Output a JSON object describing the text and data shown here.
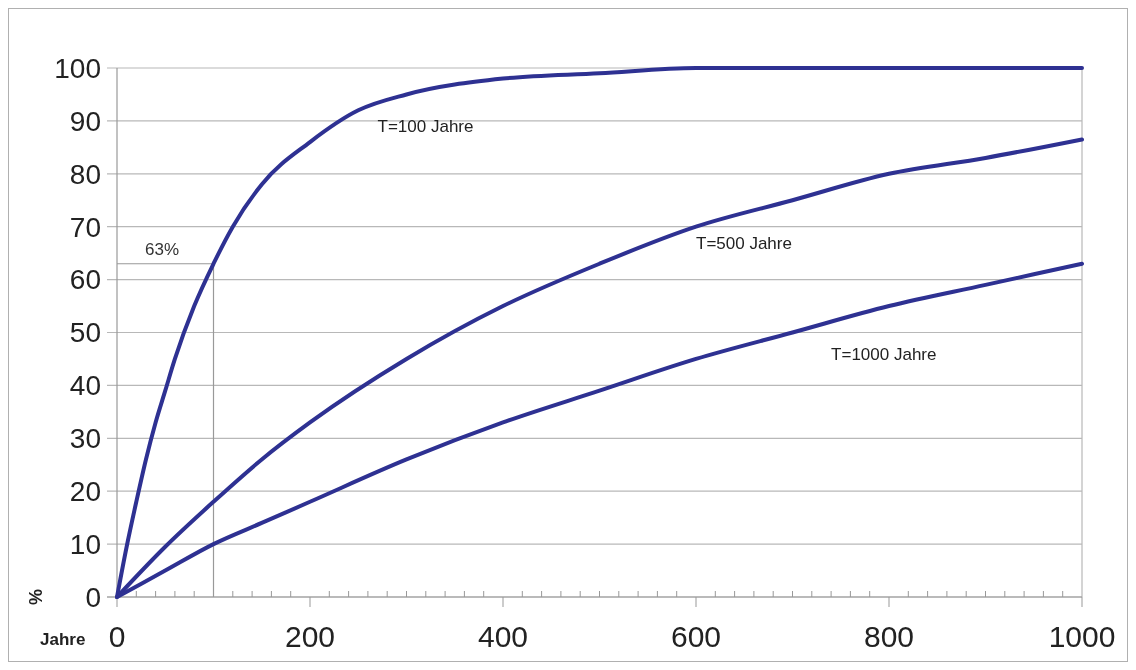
{
  "chart_data": {
    "type": "line",
    "xlabel": "Jahre",
    "ylabel": "%",
    "xlim": [
      0,
      1000
    ],
    "ylim": [
      0,
      100
    ],
    "xticks": [
      0,
      {
        "value": 20,
        "label": null
      },
      {
        "value": 40,
        "label": null
      },
      {
        "value": 60,
        "label": null
      },
      {
        "value": 80,
        "label": null
      },
      {
        "value": 100,
        "label": null
      },
      {
        "value": 120,
        "label": null
      },
      {
        "value": 140,
        "label": null
      },
      {
        "value": 160,
        "label": null
      },
      {
        "value": 180,
        "label": null
      },
      200,
      {
        "value": 220,
        "label": null
      },
      {
        "value": 240,
        "label": null
      },
      {
        "value": 260,
        "label": null
      },
      {
        "value": 280,
        "label": null
      },
      {
        "value": 300,
        "label": null
      },
      {
        "value": 320,
        "label": null
      },
      {
        "value": 340,
        "label": null
      },
      {
        "value": 360,
        "label": null
      },
      {
        "value": 380,
        "label": null
      },
      400,
      {
        "value": 420,
        "label": null
      },
      {
        "value": 440,
        "label": null
      },
      {
        "value": 460,
        "label": null
      },
      {
        "value": 480,
        "label": null
      },
      {
        "value": 500,
        "label": null
      },
      {
        "value": 520,
        "label": null
      },
      {
        "value": 540,
        "label": null
      },
      {
        "value": 560,
        "label": null
      },
      {
        "value": 580,
        "label": null
      },
      600,
      {
        "value": 620,
        "label": null
      },
      {
        "value": 640,
        "label": null
      },
      {
        "value": 660,
        "label": null
      },
      {
        "value": 680,
        "label": null
      },
      {
        "value": 700,
        "label": null
      },
      {
        "value": 720,
        "label": null
      },
      {
        "value": 740,
        "label": null
      },
      {
        "value": 760,
        "label": null
      },
      {
        "value": 780,
        "label": null
      },
      800,
      {
        "value": 820,
        "label": null
      },
      {
        "value": 840,
        "label": null
      },
      {
        "value": 860,
        "label": null
      },
      {
        "value": 880,
        "label": null
      },
      {
        "value": 900,
        "label": null
      },
      {
        "value": 920,
        "label": null
      },
      {
        "value": 940,
        "label": null
      },
      {
        "value": 960,
        "label": null
      },
      {
        "value": 980,
        "label": null
      },
      1000
    ],
    "yticks": [
      0,
      10,
      20,
      30,
      40,
      50,
      60,
      70,
      80,
      90,
      100
    ],
    "grid": "y",
    "marker": "none",
    "line_style": "solid",
    "series": [
      {
        "name": "T=100 Jahre",
        "color": "#2e3192",
        "x": [
          0,
          10,
          20,
          30,
          40,
          50,
          60,
          80,
          100,
          120,
          150,
          200,
          250,
          300,
          400,
          500,
          600,
          800,
          1000
        ],
        "values": [
          0,
          9.5,
          18,
          26,
          33,
          39,
          45,
          55,
          63,
          70,
          78,
          86,
          92,
          95,
          98,
          99,
          100,
          100,
          100
        ]
      },
      {
        "name": "T=500 Jahre",
        "color": "#2e3192",
        "x": [
          0,
          50,
          100,
          150,
          200,
          300,
          400,
          500,
          600,
          700,
          800,
          900,
          1000
        ],
        "values": [
          0,
          9.5,
          18,
          26,
          33,
          45,
          55,
          63,
          70,
          75,
          80,
          83,
          86.5
        ]
      },
      {
        "name": "T=1000 Jahre",
        "color": "#2e3192",
        "x": [
          0,
          50,
          100,
          150,
          200,
          300,
          400,
          500,
          600,
          700,
          800,
          900,
          1000
        ],
        "values": [
          0,
          5,
          10,
          14,
          18,
          26,
          33,
          39,
          45,
          50,
          55,
          59,
          63
        ]
      }
    ],
    "ref_lines": [
      {
        "axis": "y",
        "value": 63,
        "label": "63%",
        "color": "#999999"
      },
      {
        "axis": "x",
        "value": 100,
        "color": "#999999"
      }
    ]
  }
}
